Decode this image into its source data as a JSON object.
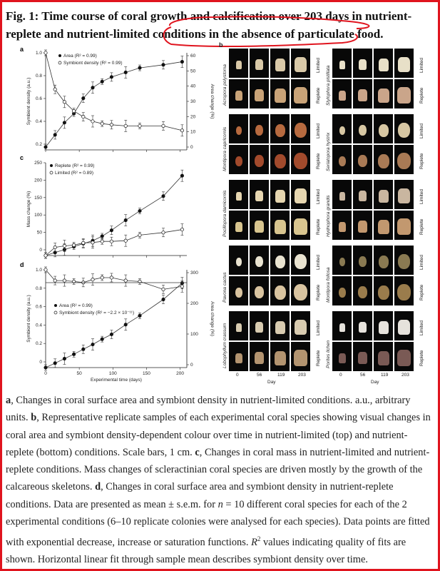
{
  "title": "Fig. 1: Time course of coral growth and calcification over 203 days in nutrient-replete and nutrient-limited conditions in the absence of particulate food.",
  "colors": {
    "frame": "#e0141e",
    "annotation": "#e0141e",
    "tile_bg": "#080808"
  },
  "panels": {
    "a": {
      "letter": "a",
      "legend": [
        "Area (R² = 0.99)",
        "Symbiont density (R² = 0.99)"
      ],
      "ylabel_left": "Symbiont density (a.u.)",
      "ylabel_right": "Area change (%)",
      "left_ticks": [
        "1.0",
        "0.8",
        "0.6",
        "0.4",
        "0.2"
      ],
      "right_ticks": [
        "60",
        "50",
        "40",
        "30",
        "20",
        "10",
        "0"
      ]
    },
    "c": {
      "letter": "c",
      "legend": [
        "Replete (R² = 0.99)",
        "Limited (R² = 0.89)"
      ],
      "ylabel": "Mass change (%)",
      "left_ticks": [
        "250",
        "200",
        "150",
        "100",
        "50",
        "0"
      ]
    },
    "d": {
      "letter": "d",
      "legend": [
        "Area (R² = 0.99)",
        "Symbiont density (R² = −2.2 × 10⁻¹¹)"
      ],
      "ylabel_left": "Symbiont density (a.u.)",
      "ylabel_right": "Area change (%)",
      "left_ticks": [
        "1.0",
        "0.8",
        "0.6",
        "0.4",
        "0.2",
        "0"
      ],
      "right_ticks": [
        "300",
        "200",
        "100",
        "0"
      ],
      "x_ticks": [
        "0",
        "50",
        "100",
        "150",
        "200"
      ],
      "xlabel": "Experimental time (days)"
    },
    "b": {
      "letter": "b",
      "left_species": [
        "Acropora polystoma",
        "Montipora capricornis",
        "Pocillopora damicornis",
        "Pavona cactus",
        "Lobophyllum crassum"
      ],
      "right_species": [
        "Stylophora pistillata",
        "Seriatopora hystrix",
        "Hydnophora grandis",
        "Montipora foliosa",
        "Porites lichen"
      ],
      "conditions": [
        "Limited",
        "Replete"
      ],
      "day_ticks": [
        "0",
        "56",
        "119",
        "203"
      ],
      "day_label": "Day"
    }
  },
  "chart_data": [
    {
      "type": "scatter",
      "panel": "a",
      "xlabel": "",
      "ylabel": "Symbiont density (a.u.)",
      "y2label": "Area change (%)",
      "series": [
        {
          "name": "Area (R² = 0.99)",
          "axis": "right",
          "x": [
            0,
            14,
            28,
            42,
            56,
            70,
            84,
            98,
            119,
            140,
            175,
            203
          ],
          "y": [
            0,
            8,
            16,
            22,
            32,
            39,
            43,
            46,
            49,
            52,
            54,
            56
          ]
        },
        {
          "name": "Symbiont density (R² = 0.99)",
          "axis": "left",
          "x": [
            0,
            14,
            28,
            42,
            56,
            70,
            84,
            98,
            119,
            140,
            175,
            203
          ],
          "y": [
            1.0,
            0.68,
            0.57,
            0.49,
            0.44,
            0.4,
            0.38,
            0.37,
            0.36,
            0.36,
            0.36,
            0.32
          ]
        }
      ],
      "ylim": [
        0.2,
        1.0
      ],
      "y2lim": [
        0,
        60
      ]
    },
    {
      "type": "scatter",
      "panel": "c",
      "ylabel": "Mass change (%)",
      "series": [
        {
          "name": "Replete (R² = 0.99)",
          "x": [
            0,
            14,
            28,
            42,
            56,
            70,
            84,
            98,
            119,
            140,
            175,
            203
          ],
          "y": [
            0,
            8,
            16,
            24,
            32,
            40,
            52,
            68,
            95,
            120,
            160,
            215
          ]
        },
        {
          "name": "Limited (R² = 0.89)",
          "x": [
            0,
            14,
            28,
            42,
            56,
            70,
            84,
            98,
            119,
            140,
            175,
            203
          ],
          "y": [
            0,
            22,
            26,
            28,
            34,
            35,
            38,
            38,
            40,
            55,
            62,
            70
          ]
        }
      ],
      "ylim": [
        0,
        250
      ]
    },
    {
      "type": "scatter",
      "panel": "d",
      "xlabel": "Experimental time (days)",
      "ylabel": "Symbiont density (a.u.)",
      "y2label": "Area change (%)",
      "series": [
        {
          "name": "Area (R² = 0.99)",
          "axis": "right",
          "x": [
            0,
            14,
            28,
            42,
            56,
            70,
            84,
            98,
            119,
            140,
            175,
            203
          ],
          "y": [
            0,
            15,
            30,
            45,
            62,
            78,
            96,
            112,
            145,
            175,
            230,
            285
          ]
        },
        {
          "name": "Symbiont density (R² = −2.2 × 10⁻¹¹)",
          "axis": "left",
          "x": [
            0,
            14,
            28,
            42,
            56,
            70,
            84,
            98,
            119,
            140,
            175,
            203
          ],
          "y": [
            1.0,
            0.89,
            0.89,
            0.88,
            0.87,
            0.9,
            0.92,
            0.92,
            0.89,
            0.88,
            0.8,
            0.83
          ]
        }
      ],
      "xlim": [
        0,
        210
      ],
      "ylim": [
        0,
        1.0
      ],
      "y2lim": [
        0,
        330
      ]
    }
  ],
  "caption": {
    "a_label": "a",
    "a_text": ", Changes in coral surface area and symbiont density in nutrient-limited conditions. a.u., arbitrary units. ",
    "b_label": "b",
    "b_text": ", Representative replicate samples of each experimental coral species showing visual changes in coral area and symbiont density-dependent colour over time in nutrient-limited (top) and nutrient-replete (bottom) conditions. Scale bars, 1 cm. ",
    "c_label": "c",
    "c_text": ", Changes in coral mass in nutrient-limited and nutrient-replete conditions. Mass changes of scleractinian coral species are driven mostly by the growth of the calcareous skeletons. ",
    "d_label": "d",
    "d_text_1": ", Changes in coral surface area and symbiont density in nutrient-replete conditions. Data are presented as mean ± s.e.m. for ",
    "n_italic": "n",
    "d_text_2": " = 10 different coral species for each of the 2 experimental conditions (6–10 replicate colonies were analysed for each species). Data points are fitted with exponential decrease, increase or saturation functions. ",
    "r2_italic": "R",
    "r2_sup": "2",
    "d_text_3": " values indicating quality of fits are shown. Horizontal linear fit through sample mean describes symbiont density over time."
  }
}
